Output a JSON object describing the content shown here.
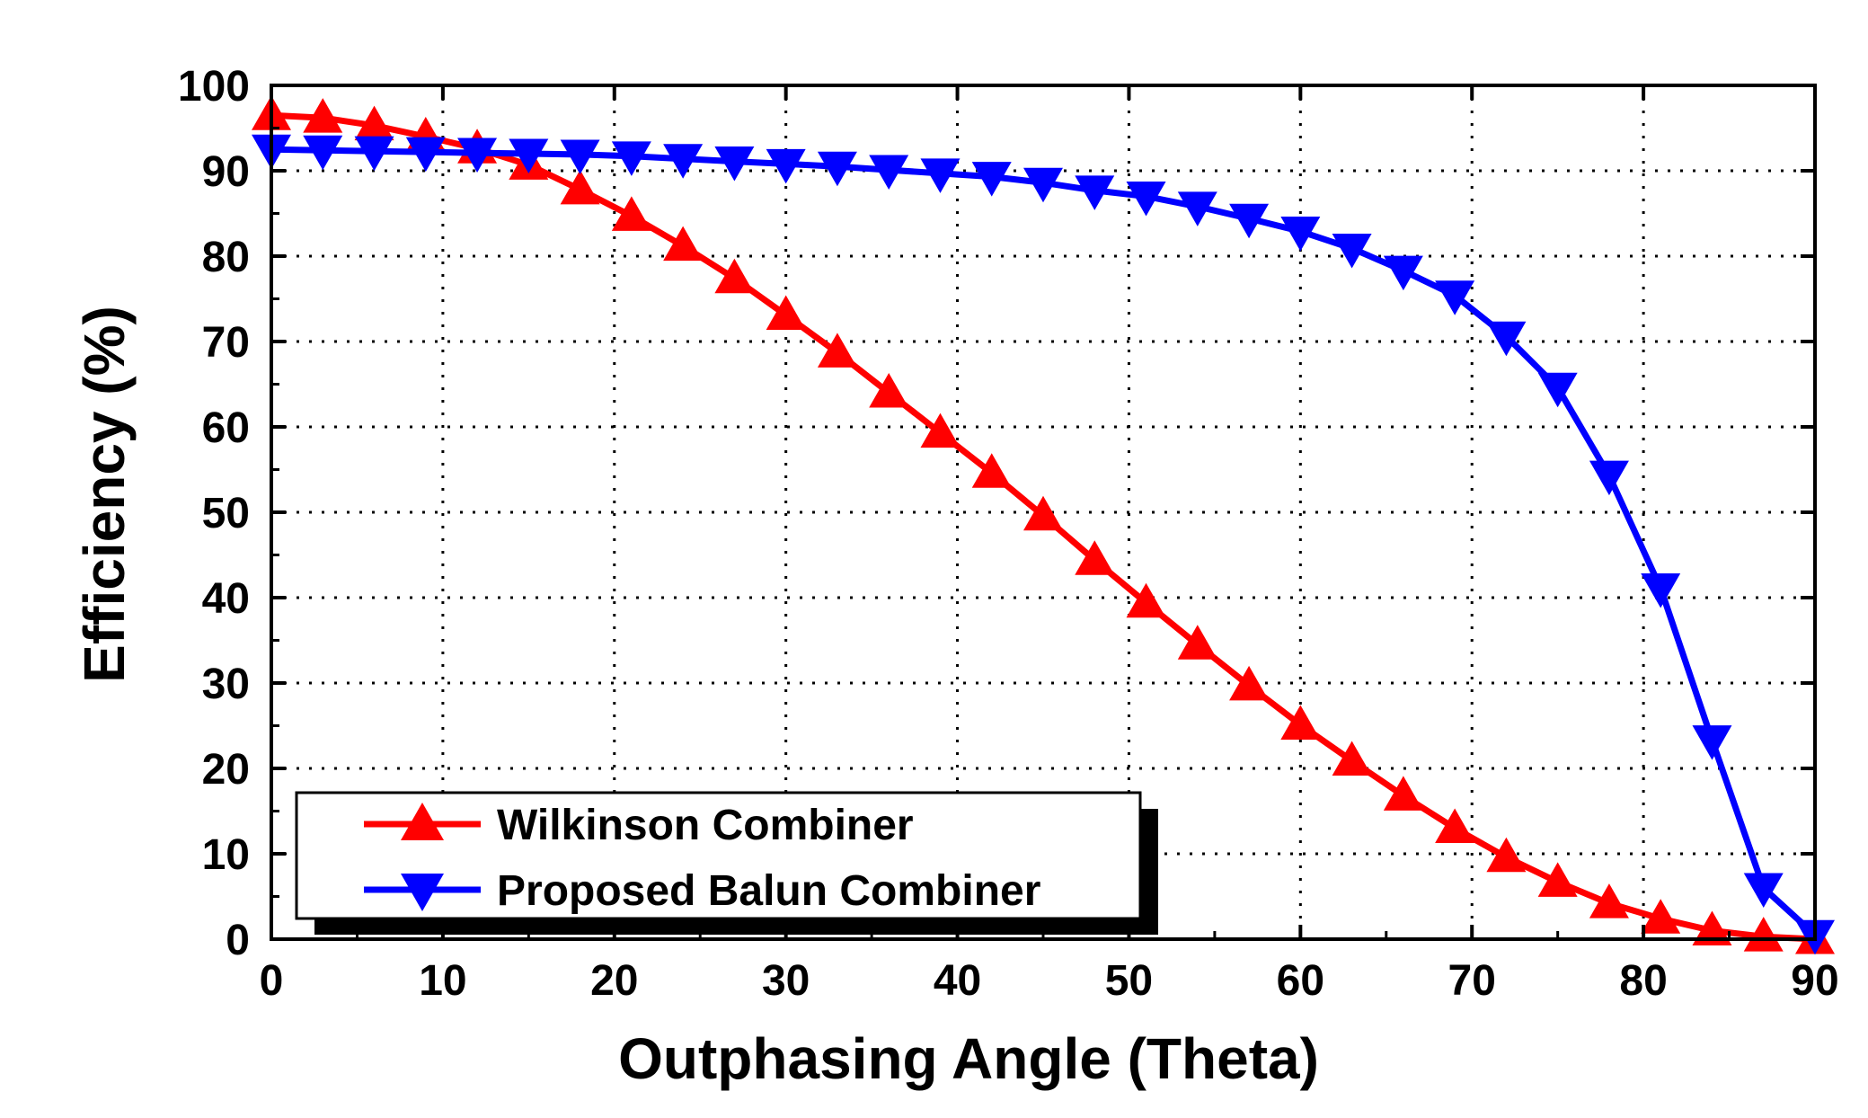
{
  "chart_data": {
    "type": "line",
    "title": "",
    "xlabel": "Outphasing Angle (Theta)",
    "ylabel": "Efficiency (%)",
    "xlim": [
      0,
      90
    ],
    "ylim": [
      0,
      100
    ],
    "x_ticks": [
      0,
      10,
      20,
      30,
      40,
      50,
      60,
      70,
      80,
      90
    ],
    "y_ticks": [
      0,
      10,
      20,
      30,
      40,
      50,
      60,
      70,
      80,
      90,
      100
    ],
    "grid": true,
    "legend_position": "bottom-left",
    "x": [
      0,
      3,
      6,
      9,
      12,
      15,
      18,
      21,
      24,
      27,
      30,
      33,
      36,
      39,
      42,
      45,
      48,
      51,
      54,
      57,
      60,
      63,
      66,
      69,
      72,
      75,
      78,
      81,
      84,
      87,
      90
    ],
    "series": [
      {
        "name": "Wilkinson Combiner",
        "color": "#ff0000",
        "marker": "triangle-up",
        "values": [
          96.5,
          96.2,
          95.3,
          94,
          92.6,
          90.7,
          87.8,
          84.7,
          81.2,
          77.4,
          73.1,
          68.7,
          64,
          59.3,
          54.6,
          49.6,
          44.4,
          39.4,
          34.5,
          29.7,
          25.1,
          20.9,
          16.8,
          13,
          9.6,
          6.7,
          4.2,
          2.4,
          1.0,
          0.3,
          0
        ]
      },
      {
        "name": "Proposed Balun Combiner",
        "color": "#0000ff",
        "marker": "triangle-down",
        "values": [
          92.5,
          92.4,
          92.3,
          92.2,
          92.1,
          92,
          91.9,
          91.7,
          91.4,
          91.1,
          90.8,
          90.5,
          90.1,
          89.7,
          89.3,
          88.6,
          87.7,
          87.0,
          85.8,
          84.4,
          82.9,
          80.9,
          78.3,
          75.4,
          70.6,
          64.6,
          54.3,
          41.1,
          23.3,
          6.0,
          0.5
        ]
      }
    ]
  }
}
